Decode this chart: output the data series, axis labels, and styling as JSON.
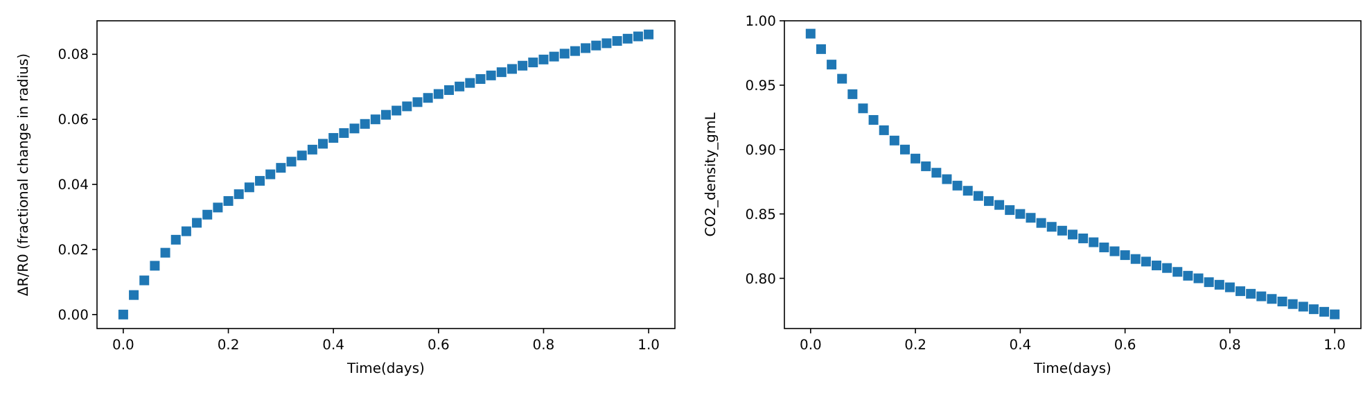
{
  "chart_data": [
    {
      "type": "scatter",
      "xlabel": "Time(days)",
      "ylabel": "ΔR/R0 (fractional change in radius)",
      "marker": "square",
      "x": [
        0,
        0.02,
        0.04,
        0.06,
        0.08,
        0.1,
        0.12,
        0.14,
        0.16,
        0.18,
        0.2,
        0.22,
        0.24,
        0.26,
        0.28,
        0.3,
        0.32,
        0.34,
        0.36,
        0.38,
        0.4,
        0.42,
        0.44,
        0.46,
        0.48,
        0.5,
        0.52,
        0.54,
        0.56,
        0.58,
        0.6,
        0.62,
        0.64,
        0.66,
        0.68,
        0.7,
        0.72,
        0.74,
        0.76,
        0.78,
        0.8,
        0.82,
        0.84,
        0.86,
        0.88,
        0.9,
        0.92,
        0.94,
        0.96,
        0.98,
        1
      ],
      "series": [
        {
          "color": "#1f77b4",
          "values": [
            0,
            0.006,
            0.0105,
            0.015,
            0.019,
            0.023,
            0.0256,
            0.0282,
            0.0307,
            0.0329,
            0.0349,
            0.037,
            0.0391,
            0.0411,
            0.0431,
            0.0451,
            0.047,
            0.0489,
            0.0507,
            0.0525,
            0.0543,
            0.0558,
            0.0572,
            0.0586,
            0.06,
            0.0614,
            0.0627,
            0.064,
            0.0653,
            0.0666,
            0.0678,
            0.069,
            0.0701,
            0.0712,
            0.0724,
            0.0735,
            0.0745,
            0.0755,
            0.0765,
            0.0775,
            0.0784,
            0.0793,
            0.0802,
            0.081,
            0.0819,
            0.0827,
            0.0834,
            0.0841,
            0.0848,
            0.0855,
            0.0861
          ]
        }
      ],
      "xlim": [
        -0.05,
        1.05
      ],
      "xticks": [
        {
          "value": 0,
          "label": "0.0"
        },
        {
          "value": 0.2,
          "label": "0.2"
        },
        {
          "value": 0.4,
          "label": "0.4"
        },
        {
          "value": 0.6,
          "label": "0.6"
        },
        {
          "value": 0.8,
          "label": "0.8"
        },
        {
          "value": 1,
          "label": "1.0"
        }
      ],
      "ylim": [
        -0.0043,
        0.0903
      ],
      "yticks": [
        {
          "value": 0,
          "label": "0.00"
        },
        {
          "value": 0.02,
          "label": "0.02"
        },
        {
          "value": 0.04,
          "label": "0.04"
        },
        {
          "value": 0.06,
          "label": "0.06"
        },
        {
          "value": 0.08,
          "label": "0.08"
        }
      ]
    },
    {
      "type": "scatter",
      "xlabel": "Time(days)",
      "ylabel": "CO2_density_gmL",
      "marker": "square",
      "x": [
        0,
        0.02,
        0.04,
        0.06,
        0.08,
        0.1,
        0.12,
        0.14,
        0.16,
        0.18,
        0.2,
        0.22,
        0.24,
        0.26,
        0.28,
        0.3,
        0.32,
        0.34,
        0.36,
        0.38,
        0.4,
        0.42,
        0.44,
        0.46,
        0.48,
        0.5,
        0.52,
        0.54,
        0.56,
        0.58,
        0.6,
        0.62,
        0.64,
        0.66,
        0.68,
        0.7,
        0.72,
        0.74,
        0.76,
        0.78,
        0.8,
        0.82,
        0.84,
        0.86,
        0.88,
        0.9,
        0.92,
        0.94,
        0.96,
        0.98,
        1
      ],
      "series": [
        {
          "color": "#1f77b4",
          "values": [
            0.99,
            0.978,
            0.966,
            0.955,
            0.943,
            0.932,
            0.923,
            0.915,
            0.907,
            0.9,
            0.893,
            0.887,
            0.882,
            0.877,
            0.872,
            0.868,
            0.864,
            0.86,
            0.857,
            0.853,
            0.85,
            0.847,
            0.843,
            0.84,
            0.837,
            0.834,
            0.831,
            0.828,
            0.824,
            0.821,
            0.818,
            0.815,
            0.813,
            0.81,
            0.808,
            0.805,
            0.802,
            0.8,
            0.797,
            0.795,
            0.793,
            0.79,
            0.788,
            0.786,
            0.784,
            0.782,
            0.78,
            0.778,
            0.776,
            0.774,
            0.772
          ]
        }
      ],
      "xlim": [
        -0.05,
        1.05
      ],
      "xticks": [
        {
          "value": 0,
          "label": "0.0"
        },
        {
          "value": 0.2,
          "label": "0.2"
        },
        {
          "value": 0.4,
          "label": "0.4"
        },
        {
          "value": 0.6,
          "label": "0.6"
        },
        {
          "value": 0.8,
          "label": "0.8"
        },
        {
          "value": 1,
          "label": "1.0"
        }
      ],
      "ylim": [
        0.761,
        1.0
      ],
      "yticks": [
        {
          "value": 0.8,
          "label": "0.80"
        },
        {
          "value": 0.85,
          "label": "0.85"
        },
        {
          "value": 0.9,
          "label": "0.90"
        },
        {
          "value": 0.95,
          "label": "0.95"
        },
        {
          "value": 1,
          "label": "1.00"
        }
      ]
    }
  ]
}
